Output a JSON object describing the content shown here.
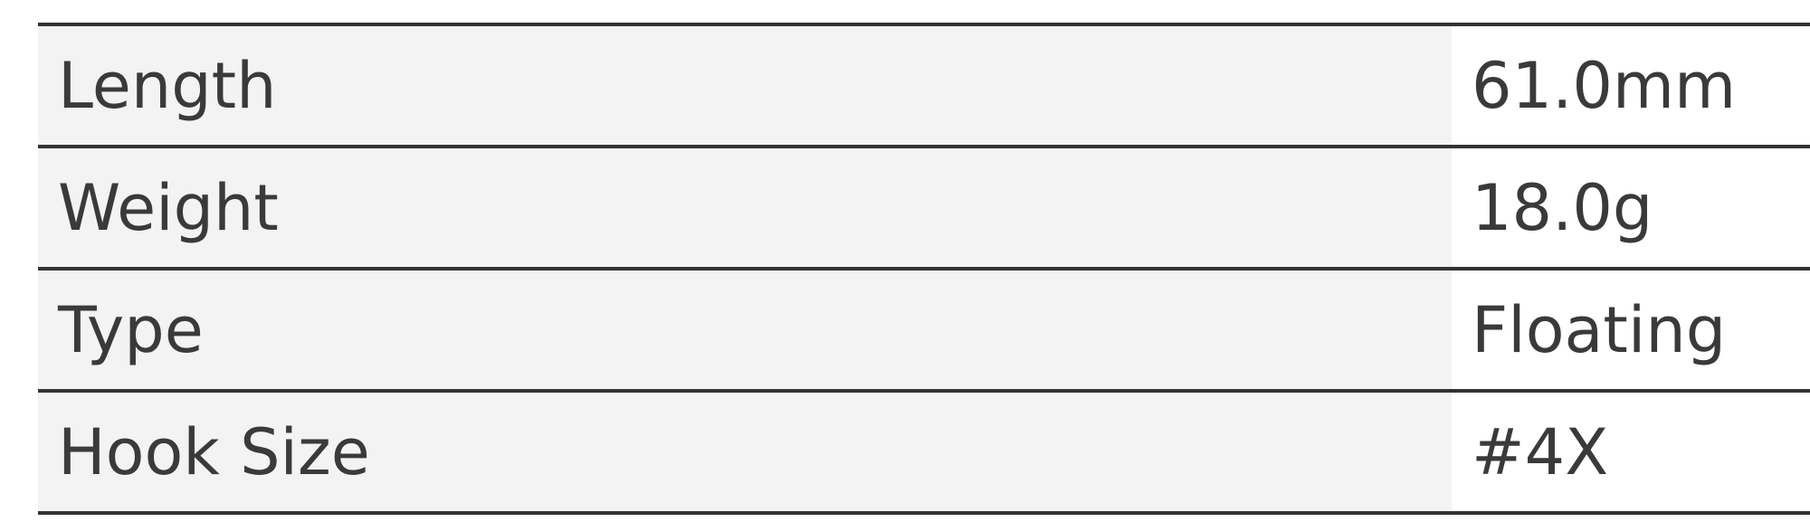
{
  "specs": [
    {
      "label": "Length",
      "value": "61.0mm"
    },
    {
      "label": "Weight",
      "value": "18.0g"
    },
    {
      "label": "Type",
      "value": "Floating"
    },
    {
      "label": "Hook Size",
      "value": "#4X"
    }
  ],
  "colors": {
    "label_bg": "#f3f3f3",
    "border": "#333333",
    "text": "#3a3a3a"
  }
}
